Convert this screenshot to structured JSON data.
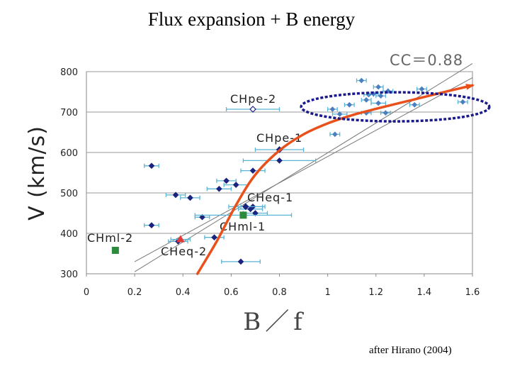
{
  "title": "Flux expansion + B energy",
  "credit": "after Hirano (2004)",
  "cc_label": "CC＝0.88",
  "chart_data": {
    "type": "scatter",
    "xlabel": "B／f",
    "ylabel": "V (km/s)",
    "xlim": [
      0,
      1.6
    ],
    "ylim": [
      300,
      800
    ],
    "xticks": [
      "0",
      "0.2",
      "0.4",
      "0.6",
      "0.8",
      "1",
      "1.2",
      "1.4",
      "1.6"
    ],
    "yticks": [
      "300",
      "400",
      "500",
      "600",
      "700",
      "800"
    ],
    "grid": "horizontal",
    "colors": {
      "dark_points": "#1a237e",
      "light_points": "#4a7fc0",
      "error_bars": "#5ab4d6",
      "labeled_green": "#2e8b3e",
      "labeled_red": "#e53935",
      "fit_curve": "#e8501c",
      "ellipse": "#1a1a8c",
      "regression": "#777777"
    },
    "series": [
      {
        "values": [
          {
            "x": 0.27,
            "y": 567,
            "xerr": 0.03
          },
          {
            "x": 0.37,
            "y": 495,
            "xerr": 0.04
          },
          {
            "x": 0.43,
            "y": 488,
            "xerr": 0.04
          },
          {
            "x": 0.27,
            "y": 420,
            "xerr": 0.03
          },
          {
            "x": 0.48,
            "y": 440,
            "xerr": 0.03
          },
          {
            "x": 0.55,
            "y": 510,
            "xerr": 0.05
          },
          {
            "x": 0.58,
            "y": 530,
            "xerr": 0.04
          },
          {
            "x": 0.62,
            "y": 520,
            "xerr": 0.05
          },
          {
            "x": 0.69,
            "y": 555,
            "xerr": 0.05
          },
          {
            "x": 0.8,
            "y": 580,
            "xerr": 0.15
          },
          {
            "x": 0.68,
            "y": 460,
            "xerr": 0.05
          },
          {
            "x": 0.69,
            "y": 466,
            "xerr": 0.05
          },
          {
            "x": 0.7,
            "y": 450,
            "xerr": 0.05
          },
          {
            "x": 0.38,
            "y": 380,
            "xerr": 0.04
          },
          {
            "x": 0.53,
            "y": 390,
            "xerr": 0.04
          },
          {
            "x": 0.64,
            "y": 330,
            "xerr": 0.08
          }
        ]
      },
      {
        "values": [
          {
            "x": 1.03,
            "y": 645,
            "xerr": 0.02
          },
          {
            "x": 1.02,
            "y": 707,
            "xerr": 0.02
          },
          {
            "x": 1.05,
            "y": 695,
            "xerr": 0.03
          },
          {
            "x": 1.09,
            "y": 718,
            "xerr": 0.02
          },
          {
            "x": 1.14,
            "y": 778,
            "xerr": 0.02
          },
          {
            "x": 1.16,
            "y": 730,
            "xerr": 0.02
          },
          {
            "x": 1.17,
            "y": 743,
            "xerr": 0.02
          },
          {
            "x": 1.19,
            "y": 745,
            "xerr": 0.02
          },
          {
            "x": 1.21,
            "y": 762,
            "xerr": 0.02
          },
          {
            "x": 1.22,
            "y": 740,
            "xerr": 0.02
          },
          {
            "x": 1.25,
            "y": 752,
            "xerr": 0.02
          },
          {
            "x": 1.21,
            "y": 722,
            "xerr": 0.03
          },
          {
            "x": 1.16,
            "y": 698,
            "xerr": 0.02
          },
          {
            "x": 1.24,
            "y": 698,
            "xerr": 0.02
          },
          {
            "x": 1.36,
            "y": 718,
            "xerr": 0.02
          },
          {
            "x": 1.39,
            "y": 757,
            "xerr": 0.02
          },
          {
            "x": 1.56,
            "y": 725,
            "xerr": 0.02
          }
        ]
      }
    ],
    "labeled_points": [
      {
        "label": "CHpe-2",
        "x": 0.69,
        "y": 707,
        "xerr": 0.11,
        "marker": "hollow-diamond"
      },
      {
        "label": "CHpe-1",
        "x": 0.8,
        "y": 607,
        "xerr": 0.1,
        "marker": "diamond"
      },
      {
        "label": "CHeq-1",
        "x": 0.66,
        "y": 466,
        "xerr": 0.07,
        "marker": "diamond"
      },
      {
        "label": "CHml-1",
        "x": 0.65,
        "y": 445,
        "xerr": 0.2,
        "marker": "green-square"
      },
      {
        "label": "CHml-2",
        "x": 0.12,
        "y": 358,
        "xerr": 0,
        "marker": "green-square"
      },
      {
        "label": "CHeq-2",
        "x": 0.39,
        "y": 385,
        "xerr": 0.04,
        "marker": "red-triangle"
      }
    ],
    "regression_lines": [
      {
        "x1": 0.2,
        "y1": 330,
        "x2": 1.6,
        "y2": 785
      },
      {
        "x1": 0.2,
        "y1": 305,
        "x2": 1.6,
        "y2": 820
      }
    ],
    "fit_curve": [
      {
        "x": 0.46,
        "y": 300
      },
      {
        "x": 0.54,
        "y": 380
      },
      {
        "x": 0.62,
        "y": 470
      },
      {
        "x": 0.7,
        "y": 545
      },
      {
        "x": 0.8,
        "y": 605
      },
      {
        "x": 0.9,
        "y": 645
      },
      {
        "x": 1.0,
        "y": 672
      },
      {
        "x": 1.1,
        "y": 692
      },
      {
        "x": 1.2,
        "y": 708
      },
      {
        "x": 1.35,
        "y": 730
      },
      {
        "x": 1.5,
        "y": 752
      },
      {
        "x": 1.6,
        "y": 766
      }
    ],
    "highlight_ellipse": {
      "cx": 1.28,
      "cy": 713,
      "rx": 0.39,
      "ry": 36
    }
  }
}
